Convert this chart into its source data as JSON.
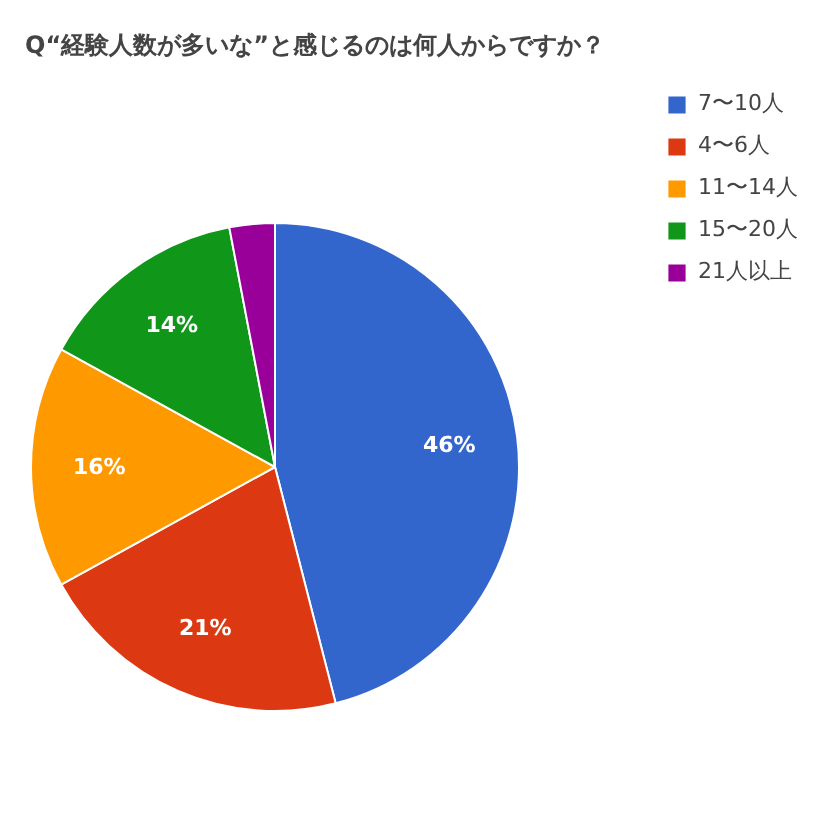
{
  "chart_data": {
    "type": "pie",
    "title": "Q“経験人数が多いな”と感じるのは何人からですか？",
    "categories": [
      "7〜10人",
      "4〜6人",
      "11〜14人",
      "15〜20人",
      "21人以上"
    ],
    "values": [
      46,
      21,
      16,
      14,
      3
    ],
    "colors": [
      "#3366cc",
      "#dc3912",
      "#ff9900",
      "#109618",
      "#990099"
    ],
    "value_labels": [
      "46%",
      "21%",
      "16%",
      "14%",
      null
    ],
    "legend": "top right"
  }
}
